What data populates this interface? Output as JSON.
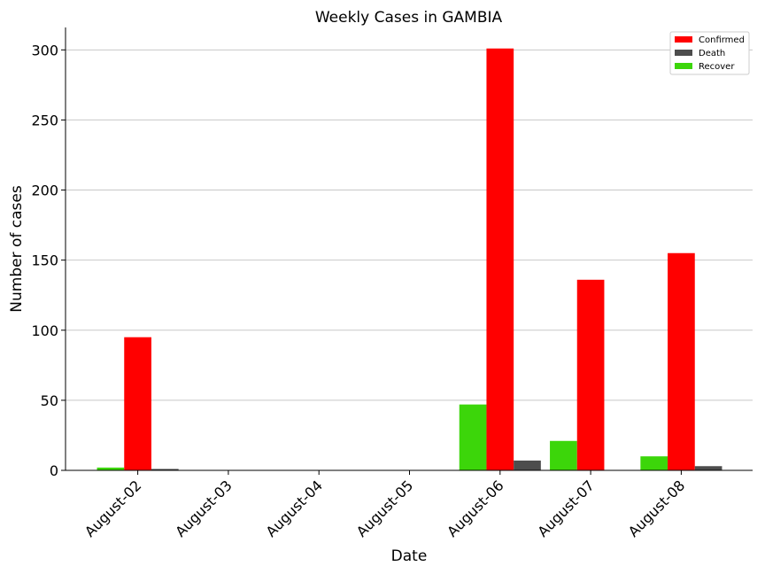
{
  "chart_data": {
    "type": "bar",
    "title": "Weekly Cases in GAMBIA",
    "xlabel": "Date",
    "ylabel": "Number of cases",
    "categories": [
      "August-02",
      "August-03",
      "August-04",
      "August-05",
      "August-06",
      "August-07",
      "August-08"
    ],
    "series": [
      {
        "name": "Recover",
        "color": "#3cd60a",
        "values": [
          2,
          0,
          0,
          0,
          47,
          21,
          10
        ]
      },
      {
        "name": "Confirmed",
        "color": "#ff0000",
        "values": [
          95,
          0,
          0,
          0,
          301,
          136,
          155
        ]
      },
      {
        "name": "Death",
        "color": "#4d4d4d",
        "values": [
          1,
          0,
          0,
          0,
          7,
          0,
          3
        ]
      }
    ],
    "legend_order": [
      "Confirmed",
      "Death",
      "Recover"
    ],
    "ylim": [
      0,
      316
    ],
    "yticks": [
      0,
      50,
      100,
      150,
      200,
      250,
      300
    ],
    "grid": "horizontal",
    "legend_position": "top-right"
  }
}
